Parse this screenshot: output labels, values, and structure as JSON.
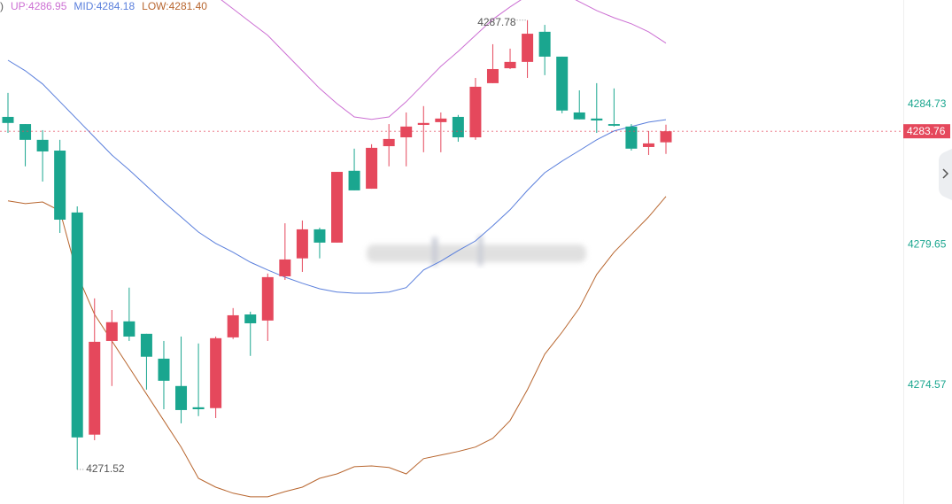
{
  "chart_data": {
    "type": "candlestick",
    "legend_prefix": ")",
    "ylim": [
      4270.27,
      4288.51
    ],
    "yticks": [
      4284.73,
      4279.65,
      4274.57
    ],
    "up_color": "#e5485c",
    "down_color": "#1aa68f",
    "tick_color": "#1aa68f",
    "current_price": 4283.76,
    "ohlc": [
      [
        4284.28,
        4285.15,
        4283.7,
        4284.06
      ],
      [
        4284.02,
        4284.02,
        4282.49,
        4283.45
      ],
      [
        4283.45,
        4283.8,
        4281.94,
        4283.03
      ],
      [
        4283.06,
        4283.45,
        4280.08,
        4280.56
      ],
      [
        4280.82,
        4281.04,
        4271.52,
        4272.68
      ],
      [
        4272.78,
        4277.71,
        4272.58,
        4276.14
      ],
      [
        4276.17,
        4277.29,
        4274.54,
        4276.85
      ],
      [
        4276.88,
        4278.1,
        4276.17,
        4276.33
      ],
      [
        4276.43,
        4276.43,
        4274.41,
        4275.6
      ],
      [
        4275.53,
        4276.17,
        4273.7,
        4274.73
      ],
      [
        4274.54,
        4276.33,
        4273.19,
        4273.67
      ],
      [
        4273.77,
        4276.08,
        4273.45,
        4273.7
      ],
      [
        4273.74,
        4276.33,
        4273.38,
        4276.27
      ],
      [
        4276.3,
        4277.36,
        4276.24,
        4277.1
      ],
      [
        4277.13,
        4277.23,
        4275.63,
        4276.81
      ],
      [
        4276.91,
        4278.61,
        4276.17,
        4278.48
      ],
      [
        4278.51,
        4280.43,
        4278.38,
        4279.12
      ],
      [
        4279.16,
        4280.53,
        4278.67,
        4280.21
      ],
      [
        4280.21,
        4280.27,
        4279.16,
        4279.73
      ],
      [
        4279.73,
        4282.29,
        4279.73,
        4282.29
      ],
      [
        4282.33,
        4283.13,
        4281.62,
        4281.62
      ],
      [
        4281.68,
        4283.29,
        4281.68,
        4283.16
      ],
      [
        4283.22,
        4284.02,
        4282.49,
        4283.48
      ],
      [
        4283.54,
        4284.44,
        4282.49,
        4283.93
      ],
      [
        4283.99,
        4284.67,
        4283.0,
        4284.06
      ],
      [
        4284.09,
        4284.44,
        4283.0,
        4284.22
      ],
      [
        4284.28,
        4284.35,
        4283.38,
        4283.54
      ],
      [
        4283.54,
        4285.69,
        4283.45,
        4285.37
      ],
      [
        4285.5,
        4286.91,
        4285.5,
        4286.01
      ],
      [
        4286.04,
        4286.75,
        4286.01,
        4286.27
      ],
      [
        4286.27,
        4287.78,
        4285.69,
        4287.29
      ],
      [
        4287.36,
        4287.61,
        4285.79,
        4286.46
      ],
      [
        4286.46,
        4286.46,
        4284.41,
        4284.51
      ],
      [
        4284.44,
        4285.24,
        4284.19,
        4284.19
      ],
      [
        4284.22,
        4285.5,
        4283.7,
        4284.15
      ],
      [
        4284.02,
        4285.31,
        4283.93,
        4283.96
      ],
      [
        4283.93,
        4284.02,
        4283.06,
        4283.13
      ],
      [
        4283.19,
        4283.77,
        4282.9,
        4283.32
      ],
      [
        4283.36,
        4284.0,
        4282.94,
        4283.76
      ]
    ],
    "series": [
      {
        "name": "UP:",
        "last_value_label": "4286.95",
        "color": "#cc6fd3",
        "values": [
          null,
          null,
          null,
          null,
          null,
          null,
          null,
          null,
          null,
          null,
          null,
          null,
          4288.67,
          4288.19,
          4287.71,
          4287.23,
          4286.59,
          4285.95,
          4285.31,
          4284.76,
          4284.28,
          4284.19,
          4284.28,
          4284.83,
          4285.47,
          4286.11,
          4286.65,
          4287.23,
          4287.81,
          4288.26,
          4288.67,
          4288.9,
          4288.77,
          4288.45,
          4288.13,
          4287.87,
          4287.65,
          4287.36,
          4286.95
        ]
      },
      {
        "name": "MID:",
        "last_value_label": "4284.18",
        "color": "#5a7fdc",
        "values": [
          4286.33,
          4285.95,
          4285.47,
          4284.83,
          4284.19,
          4283.54,
          4282.9,
          4282.36,
          4281.78,
          4281.2,
          4280.66,
          4280.11,
          4279.7,
          4279.38,
          4279.02,
          4278.74,
          4278.48,
          4278.26,
          4278.06,
          4277.94,
          4277.9,
          4277.9,
          4277.94,
          4278.1,
          4278.74,
          4279.06,
          4279.44,
          4279.79,
          4280.34,
          4280.92,
          4281.62,
          4282.26,
          4282.68,
          4283.06,
          4283.45,
          4283.77,
          4283.93,
          4284.09,
          4284.18
        ]
      },
      {
        "name": "LOW:",
        "last_value_label": "4281.40",
        "color": "#b8662f",
        "values": [
          4281.24,
          4281.14,
          4281.2,
          4280.88,
          4278.58,
          4277.13,
          4276.17,
          4275.21,
          4274.25,
          4273.29,
          4272.33,
          4271.2,
          4270.88,
          4270.66,
          4270.53,
          4270.53,
          4270.72,
          4270.88,
          4271.2,
          4271.36,
          4271.62,
          4271.65,
          4271.59,
          4271.36,
          4271.91,
          4272.04,
          4272.17,
          4272.33,
          4272.65,
          4273.29,
          4274.41,
          4275.69,
          4276.49,
          4277.36,
          4278.58,
          4279.38,
          4280.02,
          4280.66,
          4281.4
        ]
      }
    ]
  }
}
